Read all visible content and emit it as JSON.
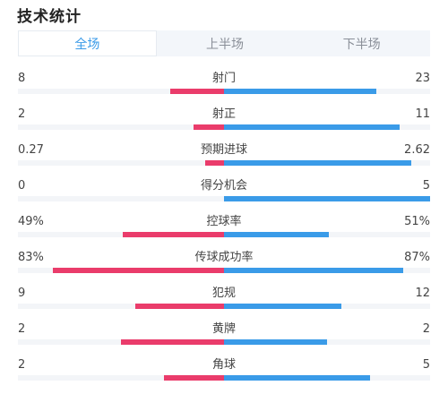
{
  "title": "技术统计",
  "tabs": [
    {
      "label": "全场",
      "active": true
    },
    {
      "label": "上半场",
      "active": false
    },
    {
      "label": "下半场",
      "active": false
    }
  ],
  "colors": {
    "home": "#ea3c6b",
    "away": "#3a9be8",
    "accent": "#3b9be8"
  },
  "stats": [
    {
      "label": "射门",
      "home": "8",
      "away": "23",
      "home_share": 0.26,
      "away_share": 0.74
    },
    {
      "label": "射正",
      "home": "2",
      "away": "11",
      "home_share": 0.15,
      "away_share": 0.85
    },
    {
      "label": "预期进球",
      "home": "0.27",
      "away": "2.62",
      "home_share": 0.09,
      "away_share": 0.91
    },
    {
      "label": "得分机会",
      "home": "0",
      "away": "5",
      "home_share": 0.0,
      "away_share": 1.0
    },
    {
      "label": "控球率",
      "home": "49%",
      "away": "51%",
      "home_share": 0.49,
      "away_share": 0.51
    },
    {
      "label": "传球成功率",
      "home": "83%",
      "away": "87%",
      "home_share": 0.83,
      "away_share": 0.87
    },
    {
      "label": "犯规",
      "home": "9",
      "away": "12",
      "home_share": 0.43,
      "away_share": 0.57
    },
    {
      "label": "黄牌",
      "home": "2",
      "away": "2",
      "home_share": 0.5,
      "away_share": 0.5
    },
    {
      "label": "角球",
      "home": "2",
      "away": "5",
      "home_share": 0.29,
      "away_share": 0.71
    }
  ]
}
